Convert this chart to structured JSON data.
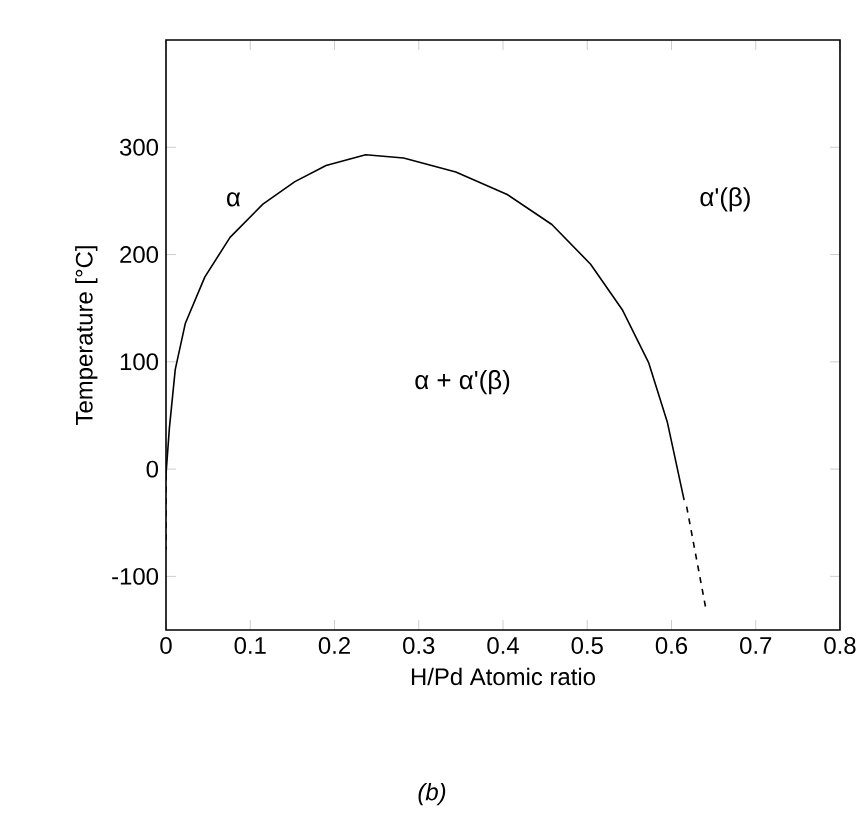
{
  "chart_data": {
    "type": "line",
    "xlabel": "H/Pd Atomic ratio",
    "ylabel": "Temperature [°C]",
    "xlim": [
      0,
      0.8
    ],
    "ylim": [
      -150,
      400
    ],
    "xticks": [
      0,
      {
        "value": 0.1,
        "label": "0.1"
      },
      {
        "value": 0.2,
        "label": "0.2"
      },
      {
        "value": 0.3,
        "label": "0.3"
      },
      {
        "value": 0.4,
        "label": "0.4"
      },
      {
        "value": 0.5,
        "label": "0.5"
      },
      {
        "value": 0.6,
        "label": "0.6"
      },
      {
        "value": 0.7,
        "label": "0.7"
      },
      {
        "value": 0.8,
        "label": "0.8"
      }
    ],
    "yticks": [
      -100,
      0,
      100,
      200,
      300
    ],
    "annotations": [
      "α",
      "α'(β)",
      "α + α'(β)",
      "(b)"
    ],
    "series": [
      {
        "color": "#000000",
        "line_style": "solid",
        "x": [
          0,
          0.004,
          0.011,
          0.023,
          0.046,
          0.076,
          0.115,
          0.153,
          0.19,
          0.237,
          0.282,
          0.344,
          0.405,
          0.458,
          0.504,
          0.542,
          0.573,
          0.595,
          0.615
        ],
        "values": [
          -5,
          38,
          93,
          136,
          179,
          216,
          247,
          268,
          283,
          293,
          290,
          277,
          256,
          228,
          191,
          148,
          99,
          44,
          -29
        ]
      },
      {
        "color": "#000000",
        "line_style": "dashed",
        "x": [
          0,
          0
        ],
        "values": [
          -5,
          -75
        ]
      },
      {
        "color": "#000000",
        "line_style": "dashed",
        "x": [
          0.618,
          0.641
        ],
        "values": [
          -35,
          -131
        ]
      }
    ]
  }
}
